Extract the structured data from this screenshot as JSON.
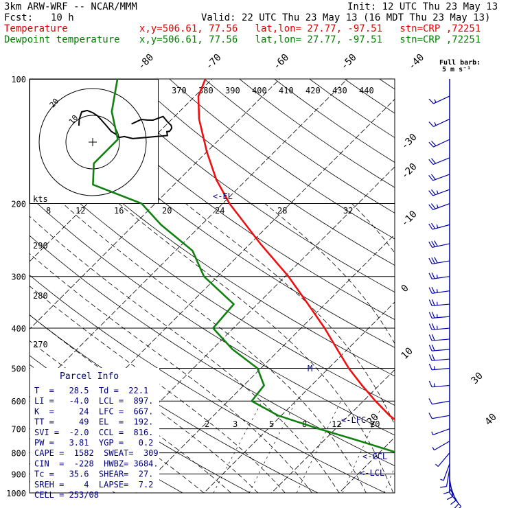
{
  "header": {
    "model": "3km ARW-WRF -- NCAR/MMM",
    "init": "Init: 12 UTC Thu 23 May 13",
    "fcst_label": "Fcst:",
    "fcst_value": "10 h",
    "valid": "Valid: 22 UTC Thu 23 May 13 (16 MDT Thu 23 May 13)",
    "temp_label": "Temperature",
    "temp_info": "x,y=506.61, 77.56   lat,lon= 27.77, -97.51   stn=CRP ,72251",
    "dew_label": "Dewpoint temperature",
    "dew_info": "x,y=506.61, 77.56   lat,lon= 27.77, -97.51   stn=CRP ,72251"
  },
  "legend": {
    "barb_title": "Full barb:",
    "barb_unit": "5 m s⁻¹"
  },
  "hodograph": {
    "unit_label": "kts",
    "ring_labels": [
      "10",
      "20"
    ]
  },
  "parcel_info": {
    "title": "Parcel Info",
    "rows": [
      "T  =   28.5  Td =  22.1",
      "LI =   -4.0  LCL =  897.",
      "K  =     24  LFC =  667.",
      "TT =     49  EL  =  192.",
      "SVI =  -2.0  CCL =  816.",
      "PW =   3.81  YGP =   0.2",
      "CAPE =  1582  SWEAT=  309",
      "CIN  =  -228  HWBZ= 3684.",
      "Tc =   35.6  SHEAR=  27.",
      "SREH =    4  LAPSE=  7.2",
      "CELL = 253/08"
    ]
  },
  "chart_data": {
    "type": "line",
    "title": "",
    "xlabel": "",
    "ylabel": "",
    "y_scale": "log-pressure",
    "ylim": [
      1000,
      100
    ],
    "pressure_levels": [
      1000,
      900,
      800,
      700,
      600,
      500,
      400,
      300,
      200,
      100
    ],
    "temperature_labels": [
      "-80",
      "-70",
      "-60",
      "-50",
      "-40",
      "-30",
      "-20",
      "-10",
      "0",
      "10",
      "20",
      "30",
      "40"
    ],
    "theta_labels": [
      "370",
      "380",
      "390",
      "400",
      "410",
      "420",
      "430",
      "440"
    ],
    "theta_e_labels": [
      "290",
      "280",
      "270"
    ],
    "mixing_ratio_labels": [
      "2",
      "3",
      "5",
      "8",
      "12",
      "20"
    ],
    "wet_bulb_labels": [
      "8",
      "12",
      "16",
      "20",
      "24",
      "28",
      "32"
    ],
    "annotations": [
      "<-EL",
      "<-LFC",
      "<-CCL",
      "<-LCL",
      "M"
    ],
    "series": [
      {
        "name": "Temperature",
        "color": "#ee1010",
        "points": [
          [
            1000,
            28.5
          ],
          [
            975,
            25.5
          ],
          [
            950,
            24.5
          ],
          [
            925,
            23.8
          ],
          [
            900,
            22.5
          ],
          [
            850,
            19.5
          ],
          [
            800,
            16.8
          ],
          [
            750,
            14.0
          ],
          [
            700,
            10.5
          ],
          [
            650,
            6.0
          ],
          [
            600,
            1.8
          ],
          [
            550,
            -2.5
          ],
          [
            500,
            -7.0
          ],
          [
            450,
            -11.5
          ],
          [
            400,
            -16.5
          ],
          [
            350,
            -22.5
          ],
          [
            300,
            -29.5
          ],
          [
            250,
            -38.5
          ],
          [
            200,
            -49.0
          ],
          [
            175,
            -54.5
          ],
          [
            150,
            -60.0
          ],
          [
            125,
            -66.0
          ],
          [
            110,
            -69.5
          ],
          [
            100,
            -71.0
          ]
        ]
      },
      {
        "name": "Dewpoint temperature",
        "color": "#108010",
        "points": [
          [
            1000,
            22.1
          ],
          [
            975,
            21.6
          ],
          [
            950,
            20.6
          ],
          [
            925,
            20.3
          ],
          [
            900,
            19.5
          ],
          [
            850,
            16.6
          ],
          [
            800,
            12.7
          ],
          [
            750,
            5.5
          ],
          [
            700,
            -2.5
          ],
          [
            650,
            -10.5
          ],
          [
            600,
            -16.5
          ],
          [
            550,
            -17.0
          ],
          [
            500,
            -20.5
          ],
          [
            450,
            -27.0
          ],
          [
            400,
            -33.0
          ],
          [
            350,
            -33.5
          ],
          [
            300,
            -42.0
          ],
          [
            260,
            -47.5
          ],
          [
            225,
            -56.0
          ],
          [
            200,
            -62.0
          ],
          [
            180,
            -72.0
          ],
          [
            160,
            -75.0
          ],
          [
            140,
            -75.0
          ],
          [
            120,
            -80.0
          ],
          [
            100,
            -84.0
          ]
        ]
      }
    ],
    "wind_barbs_kts": [
      {
        "p": 1000,
        "dir": 140,
        "spd": 8
      },
      {
        "p": 975,
        "dir": 150,
        "spd": 10
      },
      {
        "p": 950,
        "dir": 160,
        "spd": 12
      },
      {
        "p": 925,
        "dir": 170,
        "spd": 12
      },
      {
        "p": 900,
        "dir": 180,
        "spd": 11
      },
      {
        "p": 875,
        "dir": 190,
        "spd": 10
      },
      {
        "p": 850,
        "dir": 200,
        "spd": 9
      },
      {
        "p": 800,
        "dir": 220,
        "spd": 8
      },
      {
        "p": 750,
        "dir": 240,
        "spd": 8
      },
      {
        "p": 700,
        "dir": 250,
        "spd": 9
      },
      {
        "p": 650,
        "dir": 260,
        "spd": 10
      },
      {
        "p": 600,
        "dir": 260,
        "spd": 12
      },
      {
        "p": 550,
        "dir": 265,
        "spd": 15
      },
      {
        "p": 500,
        "dir": 265,
        "spd": 18
      },
      {
        "p": 475,
        "dir": 265,
        "spd": 20
      },
      {
        "p": 450,
        "dir": 265,
        "spd": 22
      },
      {
        "p": 425,
        "dir": 265,
        "spd": 24
      },
      {
        "p": 400,
        "dir": 265,
        "spd": 26
      },
      {
        "p": 375,
        "dir": 265,
        "spd": 27
      },
      {
        "p": 350,
        "dir": 265,
        "spd": 28
      },
      {
        "p": 325,
        "dir": 262,
        "spd": 28
      },
      {
        "p": 300,
        "dir": 262,
        "spd": 29
      },
      {
        "p": 275,
        "dir": 260,
        "spd": 30
      },
      {
        "p": 250,
        "dir": 258,
        "spd": 30
      },
      {
        "p": 225,
        "dir": 255,
        "spd": 29
      },
      {
        "p": 200,
        "dir": 250,
        "spd": 28
      },
      {
        "p": 185,
        "dir": 250,
        "spd": 26
      },
      {
        "p": 170,
        "dir": 250,
        "spd": 24
      },
      {
        "p": 155,
        "dir": 248,
        "spd": 22
      },
      {
        "p": 140,
        "dir": 245,
        "spd": 20
      },
      {
        "p": 125,
        "dir": 245,
        "spd": 18
      },
      {
        "p": 110,
        "dir": 245,
        "spd": 16
      }
    ]
  }
}
